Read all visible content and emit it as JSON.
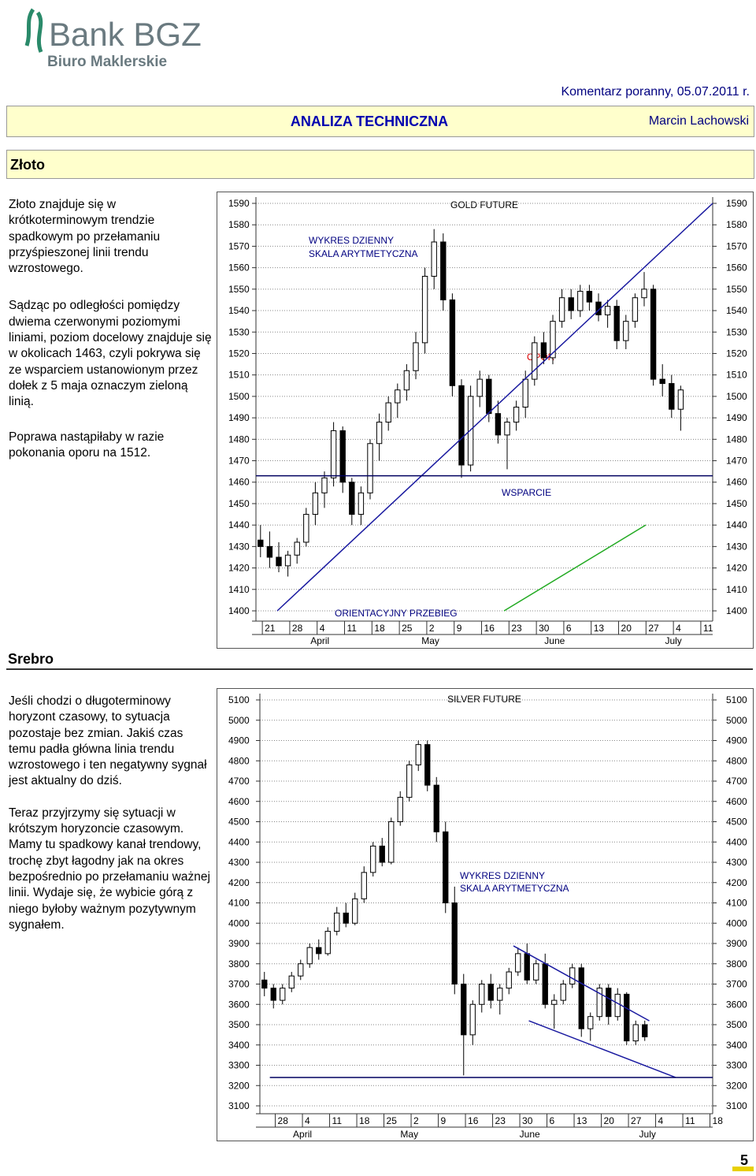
{
  "header": {
    "logo": "Bank BGZ",
    "logo_sub": "Biuro Maklerskie",
    "comment": "Komentarz poranny, 05.07.2011 r.",
    "section": "ANALIZA TECHNICZNA",
    "author": "Marcin Lachowski"
  },
  "gold": {
    "heading": "Złoto",
    "paragraphs": [
      "Złoto znajduje się w krótkoterminowym trendzie spadkowym po przełamaniu przyśpieszonej linii trendu wzrostowego.",
      "Sądząc po odległości pomiędzy dwiema czerwonymi poziomymi liniami, poziom docelowy znajduje się w okolicach 1463, czyli pokrywa się ze wsparciem ustanowionym przez dołek z 5 maja oznaczym zieloną linią.",
      "Poprawa nastąpiłaby w razie pokonania oporu na 1512."
    ]
  },
  "silver": {
    "heading": "Srebro",
    "paragraphs": [
      "Jeśli chodzi o długoterminowy horyzont czasowy, to sytuacja pozostaje bez zmian. Jakiś czas temu padła główna linia trendu wzrostowego i ten negatywny sygnał jest aktualny do dziś.",
      "Teraz przyjrzymy się sytuacji w krótszym horyzoncie czasowym. Mamy tu spadkowy kanał trendowy, trochę zbyt łagodny jak na okres bezpośrednio po przełamaniu ważnej linii. Wydaje się, że wybicie górą z niego byłoby ważnym pozytywnym sygnałem."
    ]
  },
  "page_number": "5",
  "chart_data": [
    {
      "type": "candlestick",
      "title": "GOLD FUTURE",
      "annotations": [
        "WYKRES DZIENNY",
        "SKALA ARYTMETYCZNA",
        "OPÓR",
        "WSPARCIE",
        "ORIENTACYJNY PRZEBIEG"
      ],
      "candles": [
        [
          1433,
          1440,
          1425,
          1430
        ],
        [
          1430,
          1437,
          1420,
          1425
        ],
        [
          1425,
          1432,
          1418,
          1421
        ],
        [
          1421,
          1428,
          1416,
          1426
        ],
        [
          1426,
          1434,
          1422,
          1432
        ],
        [
          1432,
          1448,
          1430,
          1445
        ],
        [
          1445,
          1460,
          1440,
          1455
        ],
        [
          1455,
          1465,
          1448,
          1462
        ],
        [
          1462,
          1488,
          1458,
          1484
        ],
        [
          1484,
          1486,
          1455,
          1460
        ],
        [
          1460,
          1462,
          1440,
          1445
        ],
        [
          1445,
          1458,
          1440,
          1455
        ],
        [
          1455,
          1480,
          1452,
          1478
        ],
        [
          1478,
          1492,
          1470,
          1488
        ],
        [
          1488,
          1500,
          1484,
          1497
        ],
        [
          1497,
          1506,
          1490,
          1503
        ],
        [
          1503,
          1515,
          1498,
          1512
        ],
        [
          1512,
          1530,
          1508,
          1525
        ],
        [
          1525,
          1560,
          1520,
          1556
        ],
        [
          1556,
          1578,
          1550,
          1572
        ],
        [
          1572,
          1576,
          1540,
          1545
        ],
        [
          1545,
          1548,
          1500,
          1505
        ],
        [
          1505,
          1508,
          1462,
          1468
        ],
        [
          1468,
          1505,
          1465,
          1500
        ],
        [
          1500,
          1512,
          1495,
          1508
        ],
        [
          1508,
          1510,
          1488,
          1492
        ],
        [
          1492,
          1498,
          1478,
          1482
        ],
        [
          1482,
          1490,
          1466,
          1488
        ],
        [
          1488,
          1498,
          1484,
          1495
        ],
        [
          1495,
          1512,
          1490,
          1508
        ],
        [
          1508,
          1528,
          1505,
          1525
        ],
        [
          1525,
          1530,
          1515,
          1518
        ],
        [
          1518,
          1538,
          1515,
          1535
        ],
        [
          1535,
          1550,
          1532,
          1546
        ],
        [
          1546,
          1550,
          1536,
          1540
        ],
        [
          1540,
          1552,
          1537,
          1549
        ],
        [
          1549,
          1552,
          1540,
          1544
        ],
        [
          1544,
          1548,
          1535,
          1538
        ],
        [
          1538,
          1545,
          1532,
          1542
        ],
        [
          1542,
          1545,
          1522,
          1526
        ],
        [
          1526,
          1538,
          1522,
          1535
        ],
        [
          1535,
          1548,
          1532,
          1546
        ],
        [
          1546,
          1558,
          1542,
          1550
        ],
        [
          1550,
          1552,
          1505,
          1508
        ],
        [
          1508,
          1515,
          1500,
          1506
        ],
        [
          1506,
          1510,
          1490,
          1494
        ],
        [
          1494,
          1505,
          1484,
          1503
        ]
      ],
      "xlim": [
        -0.5,
        49.5
      ],
      "xticks": [
        {
          "value": 0.2,
          "label": "21"
        },
        {
          "value": 3.2,
          "label": "28"
        },
        {
          "value": 6.2,
          "label": "4"
        },
        {
          "value": 9.2,
          "label": "11"
        },
        {
          "value": 12.2,
          "label": "18"
        },
        {
          "value": 15.2,
          "label": "25"
        },
        {
          "value": 18.2,
          "label": "2"
        },
        {
          "value": 21.2,
          "label": "9"
        },
        {
          "value": 24.2,
          "label": "16"
        },
        {
          "value": 27.2,
          "label": "23"
        },
        {
          "value": 30.2,
          "label": "30"
        },
        {
          "value": 33.2,
          "label": "6"
        },
        {
          "value": 36.2,
          "label": "13"
        },
        {
          "value": 39.2,
          "label": "20"
        },
        {
          "value": 42.2,
          "label": "27"
        },
        {
          "value": 45.2,
          "label": "4"
        },
        {
          "value": 48.2,
          "label": "11"
        }
      ],
      "months": [
        {
          "value": 6.5,
          "label": "April"
        },
        {
          "value": 18.6,
          "label": "May"
        },
        {
          "value": 32.2,
          "label": "June"
        },
        {
          "value": 45.2,
          "label": "July"
        }
      ],
      "ylim": [
        1400,
        1590
      ],
      "yticks": [
        1400,
        1410,
        1420,
        1430,
        1440,
        1450,
        1460,
        1470,
        1480,
        1490,
        1500,
        1510,
        1520,
        1530,
        1540,
        1550,
        1560,
        1570,
        1580,
        1590
      ],
      "grid": true,
      "lines": [
        {
          "color": "#1a1aa0",
          "points": [
            [
              1.83,
              1400
            ],
            [
              49.5,
              1590
            ]
          ]
        },
        {
          "color": "#22aa22",
          "points": [
            [
              26.66,
              1400
            ],
            [
              42.17,
              1440
            ]
          ]
        },
        {
          "color": "#000060",
          "points": [
            [
              -0.5,
              1463
            ],
            [
              49.5,
              1463
            ]
          ]
        }
      ]
    },
    {
      "type": "candlestick",
      "title": "SILVER FUTURE",
      "annotations": [
        "WYKRES DZIENNY",
        "SKALA ARYTMETYCZNA"
      ],
      "candles": [
        [
          3720,
          3760,
          3640,
          3680
        ],
        [
          3680,
          3700,
          3580,
          3620
        ],
        [
          3620,
          3700,
          3600,
          3680
        ],
        [
          3680,
          3760,
          3660,
          3740
        ],
        [
          3740,
          3820,
          3720,
          3800
        ],
        [
          3800,
          3900,
          3780,
          3880
        ],
        [
          3880,
          3920,
          3820,
          3850
        ],
        [
          3850,
          3980,
          3840,
          3960
        ],
        [
          3960,
          4080,
          3940,
          4050
        ],
        [
          4050,
          4100,
          3980,
          4000
        ],
        [
          4000,
          4150,
          3990,
          4120
        ],
        [
          4120,
          4280,
          4100,
          4250
        ],
        [
          4250,
          4400,
          4230,
          4380
        ],
        [
          4380,
          4420,
          4280,
          4300
        ],
        [
          4300,
          4520,
          4290,
          4500
        ],
        [
          4500,
          4650,
          4480,
          4620
        ],
        [
          4620,
          4800,
          4600,
          4780
        ],
        [
          4780,
          4900,
          4750,
          4880
        ],
        [
          4880,
          4900,
          4650,
          4680
        ],
        [
          4680,
          4720,
          4400,
          4450
        ],
        [
          4450,
          4500,
          4050,
          4100
        ],
        [
          4100,
          4180,
          3650,
          3700
        ],
        [
          3700,
          3750,
          3250,
          3450
        ],
        [
          3450,
          3620,
          3400,
          3600
        ],
        [
          3600,
          3720,
          3560,
          3700
        ],
        [
          3700,
          3750,
          3580,
          3620
        ],
        [
          3620,
          3700,
          3550,
          3680
        ],
        [
          3680,
          3780,
          3650,
          3760
        ],
        [
          3760,
          3880,
          3740,
          3850
        ],
        [
          3850,
          3900,
          3700,
          3720
        ],
        [
          3720,
          3820,
          3700,
          3800
        ],
        [
          3800,
          3850,
          3580,
          3600
        ],
        [
          3600,
          3650,
          3480,
          3620
        ],
        [
          3620,
          3720,
          3600,
          3700
        ],
        [
          3700,
          3800,
          3680,
          3780
        ],
        [
          3780,
          3800,
          3440,
          3480
        ],
        [
          3480,
          3560,
          3420,
          3540
        ],
        [
          3540,
          3700,
          3520,
          3680
        ],
        [
          3680,
          3700,
          3500,
          3540
        ],
        [
          3540,
          3680,
          3520,
          3650
        ],
        [
          3650,
          3660,
          3400,
          3420
        ],
        [
          3420,
          3520,
          3400,
          3500
        ],
        [
          3500,
          3520,
          3420,
          3440
        ]
      ],
      "xlim": [
        -0.5,
        49.5
      ],
      "xticks": [
        {
          "value": 1.2,
          "label": "28"
        },
        {
          "value": 4.2,
          "label": "4"
        },
        {
          "value": 7.2,
          "label": "11"
        },
        {
          "value": 10.2,
          "label": "18"
        },
        {
          "value": 13.2,
          "label": "25"
        },
        {
          "value": 16.2,
          "label": "2"
        },
        {
          "value": 19.2,
          "label": "9"
        },
        {
          "value": 22.2,
          "label": "16"
        },
        {
          "value": 25.2,
          "label": "23"
        },
        {
          "value": 28.2,
          "label": "30"
        },
        {
          "value": 31.2,
          "label": "6"
        },
        {
          "value": 34.2,
          "label": "13"
        },
        {
          "value": 37.2,
          "label": "20"
        },
        {
          "value": 40.2,
          "label": "27"
        },
        {
          "value": 43.2,
          "label": "4"
        },
        {
          "value": 46.2,
          "label": "11"
        },
        {
          "value": 49.2,
          "label": "18"
        }
      ],
      "months": [
        {
          "value": 4.2,
          "label": "April"
        },
        {
          "value": 16.0,
          "label": "May"
        },
        {
          "value": 29.3,
          "label": "June"
        },
        {
          "value": 42.3,
          "label": "July"
        }
      ],
      "ylim": [
        3100,
        5100
      ],
      "yticks": [
        3100,
        3200,
        3300,
        3400,
        3500,
        3600,
        3700,
        3800,
        3900,
        4000,
        4100,
        4200,
        4300,
        4400,
        4500,
        4600,
        4700,
        4800,
        4900,
        5000,
        5100
      ],
      "grid": true,
      "lines": [
        {
          "color": "#1a1aa0",
          "points": [
            [
              27.5,
              3888
            ],
            [
              42.5,
              3519
            ]
          ]
        },
        {
          "color": "#1a1aa0",
          "points": [
            [
              29.2,
              3519
            ],
            [
              45.4,
              3240
            ]
          ]
        },
        {
          "color": "#000060",
          "points": [
            [
              0.6,
              3240
            ],
            [
              49.5,
              3240
            ]
          ]
        }
      ]
    }
  ]
}
